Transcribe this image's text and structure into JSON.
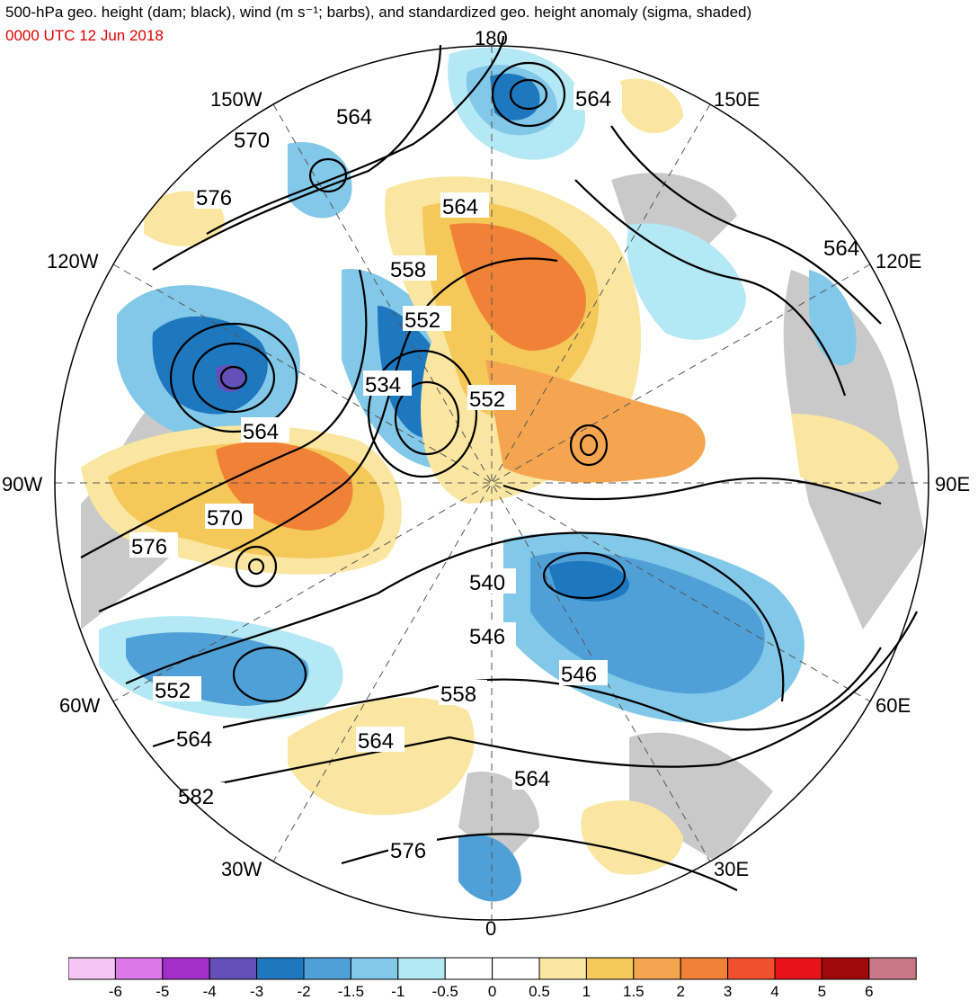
{
  "header": {
    "title": "500-hPa geo. height (dam; black), wind (m s⁻¹; barbs), and standardized geo. height anomaly (sigma, shaded)",
    "time": "0000 UTC 12 Jun 2018"
  },
  "colors": {
    "land": "#ffffff",
    "neutral_gray": "#c9c9c9",
    "contour": "#000000",
    "time_text": "#e00000"
  },
  "map": {
    "projection": "north-polar-stereographic",
    "longitude_labels": [
      "180",
      "150E",
      "120E",
      "90E",
      "60E",
      "30E",
      "0",
      "30W",
      "60W",
      "90W",
      "120W",
      "150W"
    ],
    "contour_labels": [
      "564",
      "564",
      "570",
      "576",
      "564",
      "558",
      "552",
      "534",
      "552",
      "564",
      "564",
      "570",
      "576",
      "540",
      "546",
      "546",
      "552",
      "558",
      "564",
      "564",
      "582",
      "564",
      "576"
    ]
  },
  "colorbar": {
    "tick_labels": [
      "-6",
      "-5",
      "-4",
      "-3",
      "-2",
      "-1.5",
      "-1",
      "-0.5",
      "0",
      "0.5",
      "1",
      "1.5",
      "2",
      "3",
      "4",
      "5",
      "6"
    ],
    "colors": [
      "#f5c6f5",
      "#dc78e8",
      "#a42fc8",
      "#6450b8",
      "#1e78c0",
      "#50a0d8",
      "#82c8e8",
      "#b4e8f5",
      "#ffffff",
      "#ffffff",
      "#fae6a0",
      "#f5c85a",
      "#f5a550",
      "#f08237",
      "#f0502d",
      "#e61419",
      "#a00a0a",
      "#c87887"
    ]
  }
}
